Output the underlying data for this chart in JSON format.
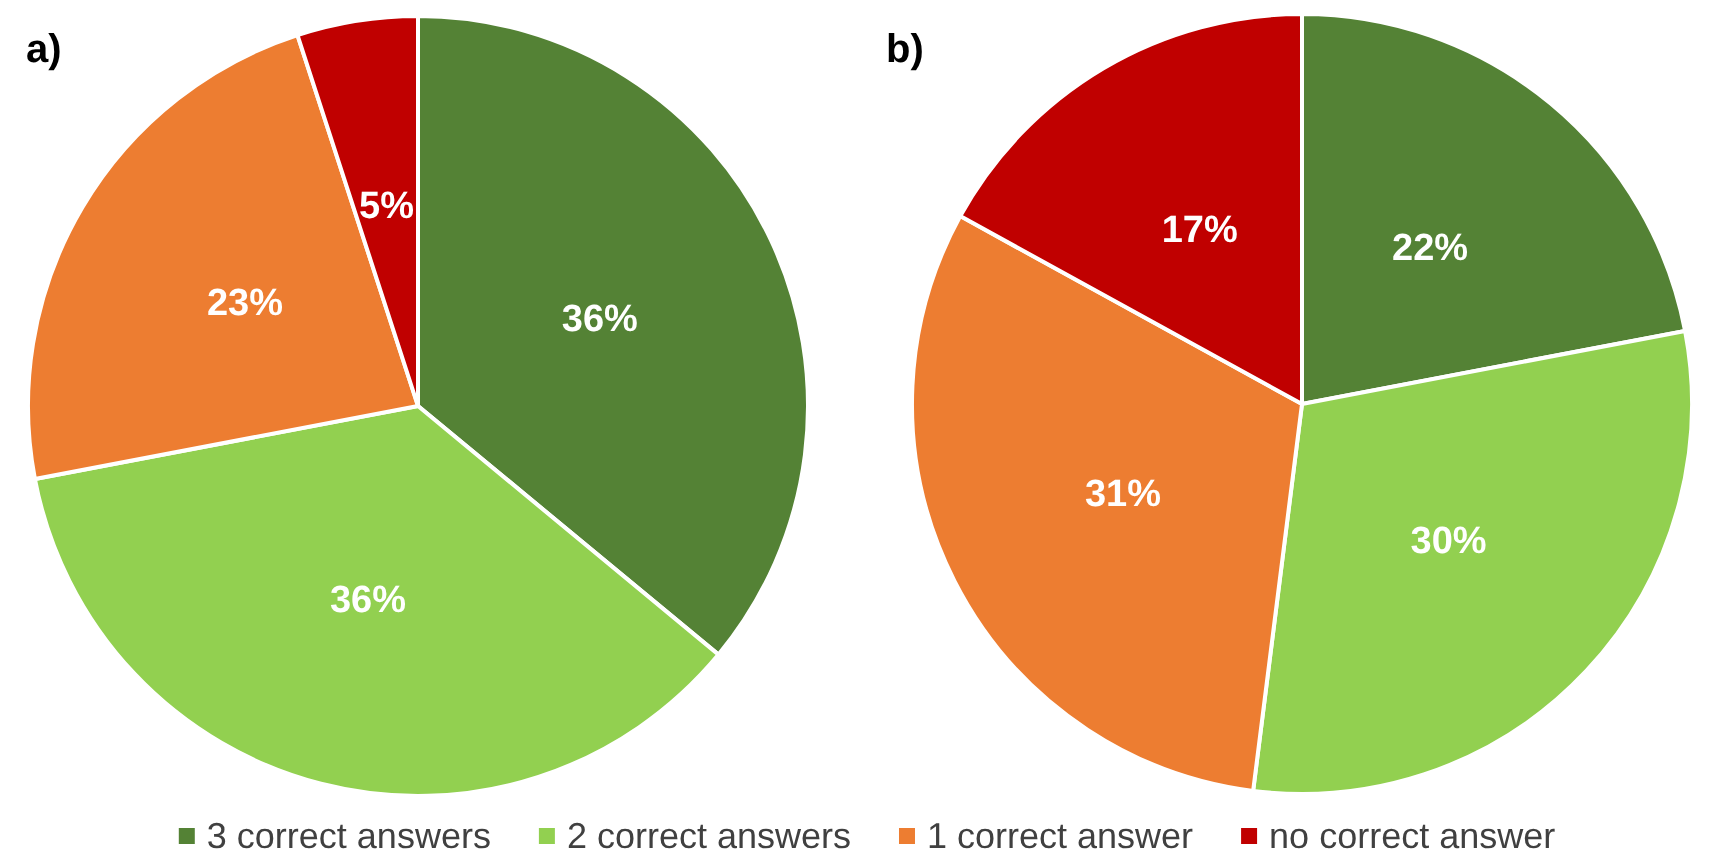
{
  "chart_data": [
    {
      "type": "pie",
      "title": "a)",
      "categories": [
        "3 correct answers",
        "2 correct answers",
        "1 correct answer",
        "no correct answer"
      ],
      "values": [
        36,
        36,
        23,
        5
      ],
      "value_labels": [
        "36%",
        "36%",
        "23%",
        "5%"
      ],
      "colors": [
        "#548235",
        "#92d050",
        "#ed7d31",
        "#c00000"
      ],
      "legend": "bottom"
    },
    {
      "type": "pie",
      "title": "b)",
      "categories": [
        null,
        null,
        null,
        null
      ],
      "values": [
        22,
        30,
        31,
        17
      ],
      "value_labels": [
        "22%",
        "30%",
        "31%",
        "17%"
      ],
      "colors": [
        "#548235",
        "#92d050",
        "#ed7d31",
        "#c00000"
      ]
    }
  ]
}
